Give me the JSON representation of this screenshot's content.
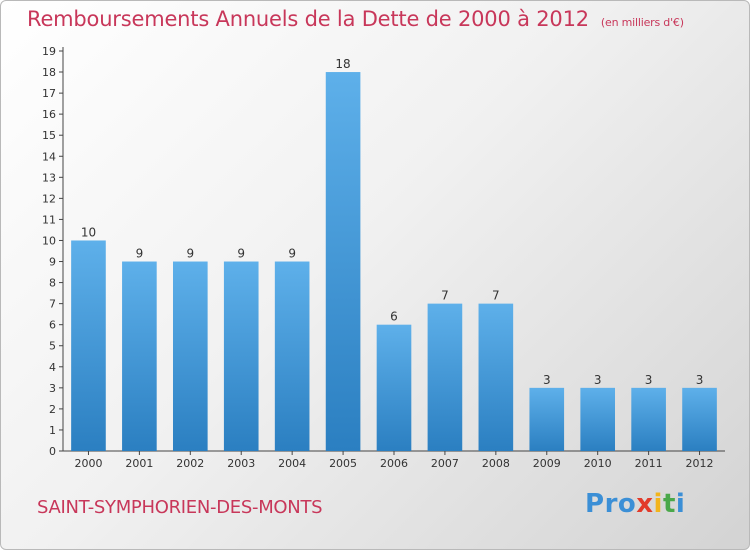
{
  "header": {
    "title": "Remboursements Annuels de la Dette de 2000 à 2012",
    "unit": "(en milliers d'€)"
  },
  "footer": {
    "commune": "SAINT-SYMPHORIEN-DES-MONTS",
    "logo": [
      "P",
      "r",
      "o",
      "x",
      "i",
      "t",
      "i"
    ]
  },
  "colors": {
    "title": "#c8375a",
    "bar_top": "#5eb0ea",
    "bar_bottom": "#2b7fc1",
    "logo": [
      "#3b8fd6",
      "#3b8fd6",
      "#3b8fd6",
      "#e23a2a",
      "#f2b41c",
      "#4aa84a",
      "#3b8fd6"
    ]
  },
  "chart_data": {
    "type": "bar",
    "categories": [
      "2000",
      "2001",
      "2002",
      "2003",
      "2004",
      "2005",
      "2006",
      "2007",
      "2008",
      "2009",
      "2010",
      "2011",
      "2012"
    ],
    "values": [
      10,
      9,
      9,
      9,
      9,
      18,
      6,
      7,
      7,
      3,
      3,
      3,
      3
    ],
    "ylim": [
      0,
      19
    ],
    "yticks": [
      0,
      1,
      2,
      3,
      4,
      5,
      6,
      7,
      8,
      9,
      10,
      11,
      12,
      13,
      14,
      15,
      16,
      17,
      18,
      19
    ],
    "grid": false,
    "data_labels": true
  }
}
